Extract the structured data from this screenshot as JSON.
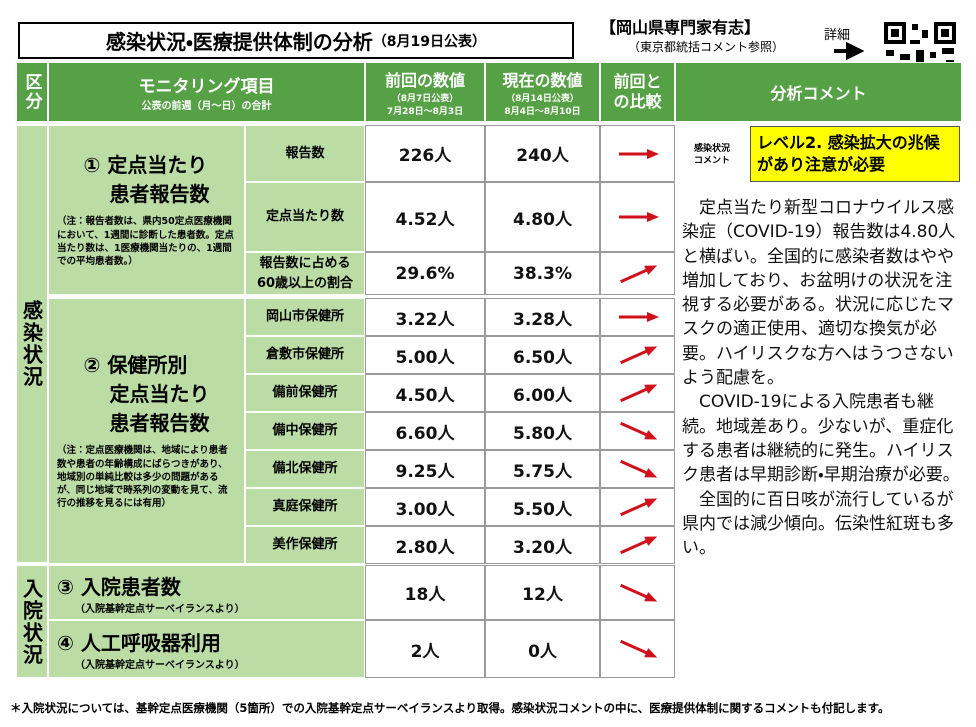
{
  "header": {
    "title": "感染状況・医療提供体制の分析",
    "date": "（8月19日公表）",
    "group": "【岡山県専門家有志】",
    "note": "（東京都統括コメント参照）",
    "detail": "詳細"
  },
  "columns": {
    "category": "区分",
    "item": "モニタリング項目",
    "item_note": "公表の前週（月～日）の合計",
    "prev": "前回の数値",
    "prev_date": "（8月7日公表）",
    "prev_range": "7月28日～8月3日",
    "curr": "現在の数値",
    "curr_date": "（8月14日公表）",
    "curr_range": "8月4日～8月10日",
    "compare": "前回との比較",
    "comment": "分析コメント"
  },
  "sections": [
    {
      "label": "感染状況",
      "groups": [
        {
          "title": [
            "① 定点当たり",
            "患者報告数"
          ],
          "note": "（注：報告者数は、県内50定点医療機関において、1週間に診断した患者数。定点当たり数は、1医療機関当たりの、1週間での平均患者数。）",
          "rows": [
            {
              "label": "報告数",
              "prev": "226人",
              "curr": "240人"
            },
            {
              "label": "定点当たり数",
              "prev": "4.52人",
              "curr": "4.80人"
            },
            {
              "label": "報告数に占める60歳以上の割合",
              "prev": "29.6%",
              "curr": "38.3%"
            }
          ]
        },
        {
          "title": [
            "② 保健所別",
            "定点当たり",
            "患者報告数"
          ],
          "note": "（注：定点医療機関は、地域により患者数や患者の年齢構成にばらつきがあり、地域別の単純比較は多少の問題があるが、同じ地域で時系列の変動を見て、流行の推移を見るには有用）",
          "rows": [
            {
              "label": "岡山市保健所",
              "prev": "3.22人",
              "curr": "3.28人"
            },
            {
              "label": "倉敷市保健所",
              "prev": "5.00人",
              "curr": "6.50人"
            },
            {
              "label": "備前保健所",
              "prev": "4.50人",
              "curr": "6.00人"
            },
            {
              "label": "備中保健所",
              "prev": "6.60人",
              "curr": "5.80人"
            },
            {
              "label": "備北保健所",
              "prev": "9.25人",
              "curr": "5.75人"
            },
            {
              "label": "真庭保健所",
              "prev": "3.00人",
              "curr": "5.50人"
            },
            {
              "label": "美作保健所",
              "prev": "2.80人",
              "curr": "3.20人"
            }
          ]
        }
      ]
    },
    {
      "label": "入院状況",
      "groups": [
        {
          "title": [
            "③ 入院患者数"
          ],
          "note": "（入院基幹定点サーベイランスより）",
          "prev": "18人",
          "curr": "12人"
        },
        {
          "title": [
            "④ 人工呼吸器利用"
          ],
          "note": "（入院基幹定点サーベイランスより）",
          "prev": "2人",
          "curr": "0人"
        }
      ]
    }
  ],
  "comment": {
    "label": "感染状況コメント",
    "level": "レベル2. 感染拡大の兆候があり注意が必要",
    "paragraphs": [
      "定点当たり新型コロナウイルス感染症（COVID-19）報告数は4.80人と横ばい。全国的に感染者数はやや増加しており、お盆明けの状況を注視する必要がある。状況に応じたマスクの適正使用、適切な換気が必要。ハイリスクな方へはうつさないよう配慮を。",
      "COVID-19による入院患者も継続。地域差あり。少ないが、重症化する患者は継続的に発生。ハイリスク患者は早期診断・早期治療が必要。",
      "全国的に百日咳が流行しているが県内では減少傾向。伝染性紅斑も多い。"
    ]
  },
  "footer": "＊入院状況については、基幹定点医療機関（5箇所）での入院基幹定点サーベイランスより取得。感染状況コメントの中に、医療提供体制に関するコメントも付記します。"
}
